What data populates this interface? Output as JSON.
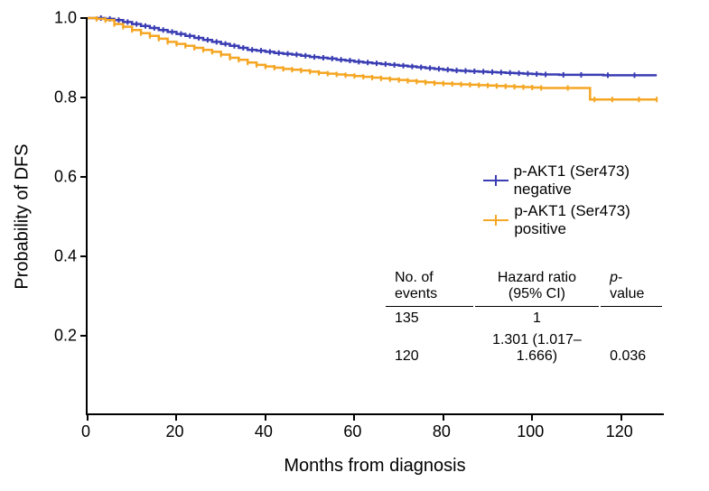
{
  "chart": {
    "type": "kaplan-meier-survival",
    "y_axis": {
      "title": "Probability of DFS",
      "min": 0.0,
      "max": 1.0,
      "ticks": [
        0.2,
        0.4,
        0.6,
        0.8,
        1.0
      ],
      "tick_labels": [
        "0.2",
        "0.4",
        "0.6",
        "0.8",
        "1.0"
      ],
      "title_fontsize": 20,
      "label_fontsize": 18
    },
    "x_axis": {
      "title": "Months from diagnosis",
      "min": 0,
      "max": 130,
      "ticks": [
        0,
        20,
        40,
        60,
        80,
        100,
        120
      ],
      "tick_labels": [
        "0",
        "20",
        "40",
        "60",
        "80",
        "100",
        "120"
      ],
      "title_fontsize": 20,
      "label_fontsize": 18
    },
    "background_color": "#ffffff",
    "axis_color": "#000000",
    "series": [
      {
        "name": "negative",
        "label": "p-AKT1 (Ser473) negative",
        "color": "#3a3db3",
        "line_width": 2.5,
        "censor_tick_height": 6,
        "points": [
          [
            0,
            1.0
          ],
          [
            2,
            1.0
          ],
          [
            4,
            0.998
          ],
          [
            6,
            0.995
          ],
          [
            8,
            0.99
          ],
          [
            10,
            0.985
          ],
          [
            12,
            0.98
          ],
          [
            14,
            0.975
          ],
          [
            16,
            0.97
          ],
          [
            18,
            0.965
          ],
          [
            20,
            0.96
          ],
          [
            22,
            0.955
          ],
          [
            24,
            0.95
          ],
          [
            26,
            0.945
          ],
          [
            28,
            0.94
          ],
          [
            30,
            0.935
          ],
          [
            32,
            0.93
          ],
          [
            34,
            0.925
          ],
          [
            36,
            0.92
          ],
          [
            38,
            0.918
          ],
          [
            40,
            0.915
          ],
          [
            42,
            0.912
          ],
          [
            44,
            0.91
          ],
          [
            46,
            0.908
          ],
          [
            48,
            0.905
          ],
          [
            50,
            0.902
          ],
          [
            52,
            0.9
          ],
          [
            54,
            0.898
          ],
          [
            56,
            0.895
          ],
          [
            58,
            0.893
          ],
          [
            60,
            0.89
          ],
          [
            62,
            0.888
          ],
          [
            64,
            0.886
          ],
          [
            66,
            0.884
          ],
          [
            68,
            0.882
          ],
          [
            70,
            0.88
          ],
          [
            72,
            0.878
          ],
          [
            74,
            0.876
          ],
          [
            76,
            0.874
          ],
          [
            78,
            0.872
          ],
          [
            80,
            0.87
          ],
          [
            82,
            0.868
          ],
          [
            84,
            0.867
          ],
          [
            86,
            0.866
          ],
          [
            88,
            0.865
          ],
          [
            90,
            0.864
          ],
          [
            92,
            0.863
          ],
          [
            94,
            0.862
          ],
          [
            96,
            0.861
          ],
          [
            98,
            0.86
          ],
          [
            100,
            0.859
          ],
          [
            102,
            0.858
          ],
          [
            104,
            0.858
          ],
          [
            106,
            0.857
          ],
          [
            108,
            0.857
          ],
          [
            110,
            0.857
          ],
          [
            112,
            0.857
          ],
          [
            114,
            0.857
          ],
          [
            116,
            0.856
          ],
          [
            118,
            0.856
          ],
          [
            120,
            0.856
          ],
          [
            124,
            0.856
          ],
          [
            128,
            0.856
          ]
        ],
        "censor_x": [
          3,
          5,
          7,
          9,
          11,
          13,
          15,
          17,
          19,
          21,
          23,
          25,
          27,
          29,
          31,
          33,
          35,
          37,
          39,
          41,
          43,
          45,
          47,
          49,
          51,
          53,
          55,
          57,
          59,
          61,
          63,
          65,
          67,
          69,
          71,
          73,
          75,
          77,
          79,
          81,
          83,
          85,
          87,
          89,
          91,
          93,
          95,
          97,
          99,
          101,
          103,
          107,
          111,
          117,
          123
        ]
      },
      {
        "name": "positive",
        "label": "p-AKT1 (Ser473) positive",
        "color": "#f5a623",
        "line_width": 2.5,
        "censor_tick_height": 6,
        "points": [
          [
            0,
            1.0
          ],
          [
            2,
            0.998
          ],
          [
            4,
            0.995
          ],
          [
            6,
            0.985
          ],
          [
            8,
            0.978
          ],
          [
            10,
            0.97
          ],
          [
            12,
            0.962
          ],
          [
            14,
            0.955
          ],
          [
            16,
            0.948
          ],
          [
            18,
            0.94
          ],
          [
            20,
            0.935
          ],
          [
            22,
            0.93
          ],
          [
            24,
            0.925
          ],
          [
            26,
            0.92
          ],
          [
            28,
            0.915
          ],
          [
            30,
            0.908
          ],
          [
            32,
            0.9
          ],
          [
            34,
            0.895
          ],
          [
            36,
            0.888
          ],
          [
            38,
            0.882
          ],
          [
            40,
            0.878
          ],
          [
            42,
            0.875
          ],
          [
            44,
            0.872
          ],
          [
            46,
            0.87
          ],
          [
            48,
            0.868
          ],
          [
            50,
            0.865
          ],
          [
            52,
            0.862
          ],
          [
            54,
            0.86
          ],
          [
            56,
            0.858
          ],
          [
            58,
            0.856
          ],
          [
            60,
            0.854
          ],
          [
            62,
            0.852
          ],
          [
            64,
            0.85
          ],
          [
            66,
            0.848
          ],
          [
            68,
            0.846
          ],
          [
            70,
            0.844
          ],
          [
            72,
            0.842
          ],
          [
            74,
            0.84
          ],
          [
            76,
            0.838
          ],
          [
            78,
            0.836
          ],
          [
            80,
            0.835
          ],
          [
            82,
            0.834
          ],
          [
            84,
            0.833
          ],
          [
            86,
            0.832
          ],
          [
            88,
            0.831
          ],
          [
            90,
            0.83
          ],
          [
            92,
            0.829
          ],
          [
            94,
            0.828
          ],
          [
            96,
            0.827
          ],
          [
            98,
            0.826
          ],
          [
            100,
            0.825
          ],
          [
            102,
            0.824
          ],
          [
            104,
            0.824
          ],
          [
            106,
            0.824
          ],
          [
            108,
            0.824
          ],
          [
            110,
            0.824
          ],
          [
            112,
            0.824
          ],
          [
            113,
            0.795
          ],
          [
            116,
            0.795
          ],
          [
            120,
            0.795
          ],
          [
            124,
            0.795
          ],
          [
            128,
            0.795
          ]
        ],
        "censor_x": [
          2,
          4,
          6,
          8,
          10,
          12,
          14,
          16,
          18,
          20,
          22,
          24,
          26,
          28,
          30,
          32,
          34,
          36,
          38,
          40,
          42,
          44,
          46,
          48,
          50,
          52,
          54,
          56,
          58,
          60,
          62,
          64,
          66,
          68,
          70,
          72,
          74,
          76,
          78,
          80,
          82,
          84,
          86,
          88,
          90,
          92,
          94,
          96,
          98,
          100,
          102,
          108,
          114,
          118,
          124,
          128
        ]
      }
    ],
    "legend": {
      "items": [
        {
          "label": "p-AKT1 (Ser473) negative",
          "color": "#3a3db3"
        },
        {
          "label": "p-AKT1 (Ser473) positive",
          "color": "#f5a623"
        }
      ],
      "fontsize": 17
    },
    "stats_table": {
      "headers": [
        "No. of events",
        "Hazard ratio (95% CI)",
        "p-value"
      ],
      "p_label_prefix": "p",
      "p_label_suffix": "-value",
      "rows": [
        {
          "events": "135",
          "hr": "1",
          "p": ""
        },
        {
          "events": "120",
          "hr": "1.301 (1.017–1.666)",
          "p": "0.036"
        }
      ],
      "fontsize": 16
    }
  }
}
